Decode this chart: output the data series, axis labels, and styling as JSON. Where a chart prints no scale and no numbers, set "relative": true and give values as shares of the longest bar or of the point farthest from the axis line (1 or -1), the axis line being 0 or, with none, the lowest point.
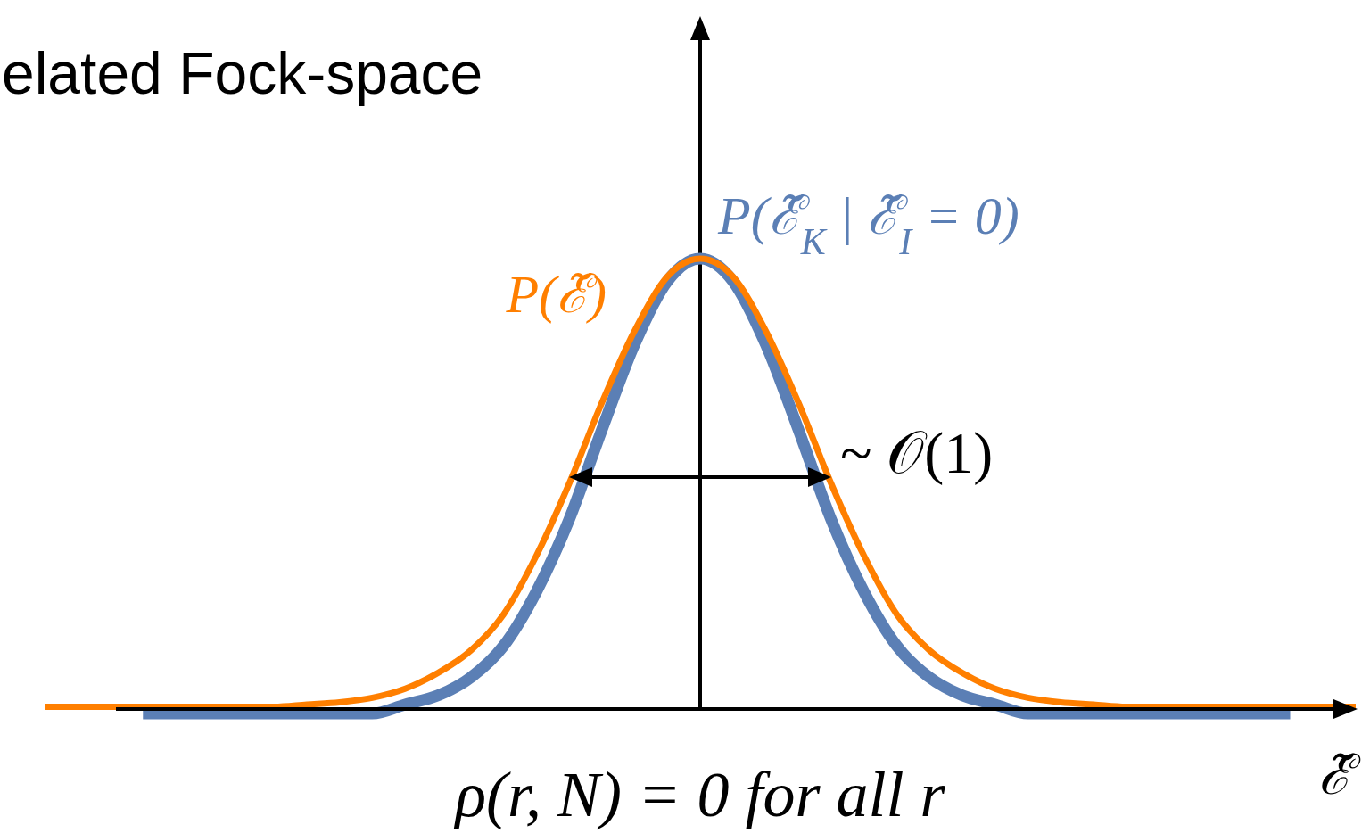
{
  "chart_data": {
    "type": "line",
    "title": "elated Fock-space",
    "xlabel": "ℰ̃",
    "relative": true,
    "categories": [
      null,
      null,
      null,
      null,
      null,
      null,
      null,
      null,
      null,
      null,
      null,
      null,
      null,
      null,
      null,
      null,
      null,
      null,
      null,
      null,
      null,
      null,
      null,
      null,
      null,
      null,
      null,
      null,
      null,
      null,
      null,
      null,
      null,
      null,
      null,
      null,
      null,
      null,
      null,
      null,
      null
    ],
    "series": [
      {
        "name": "P(ℰ̃$_{K}$ | ℰ̃$_{I}$ = 0)",
        "color": "#5b7fb5",
        "values": [
          null,
          null,
          null,
          -0.01,
          -0.01,
          -0.01,
          -0.01,
          -0.01,
          -0.01,
          -0.01,
          -0.01,
          0.01,
          0.03,
          0.07,
          0.14,
          0.26,
          0.42,
          0.62,
          0.81,
          0.95,
          1,
          0.95,
          0.81,
          0.62,
          0.42,
          0.26,
          0.14,
          0.07,
          0.03,
          0.01,
          -0.01,
          -0.01,
          -0.01,
          -0.01,
          -0.01,
          -0.01,
          -0.01,
          -0.01,
          -0.01,
          null,
          null
        ]
      },
      {
        "name": "P(ℰ̃)",
        "color": "#ff7f00",
        "values": [
          0.005,
          0.005,
          0.005,
          0.005,
          0.005,
          0.005,
          0.005,
          0.005,
          0.01,
          0.015,
          0.025,
          0.045,
          0.08,
          0.13,
          0.21,
          0.34,
          0.5,
          0.68,
          0.84,
          0.96,
          1,
          0.96,
          0.84,
          0.68,
          0.5,
          0.34,
          0.21,
          0.13,
          0.08,
          0.045,
          0.025,
          0.015,
          0.01,
          0.005,
          0.005,
          0.005,
          0.005,
          0.005,
          0.005,
          0.005,
          0.005
        ]
      }
    ],
    "annotations": [
      "~ 𝒪(1)",
      "ρ(r, N) = 0 for all r"
    ]
  }
}
